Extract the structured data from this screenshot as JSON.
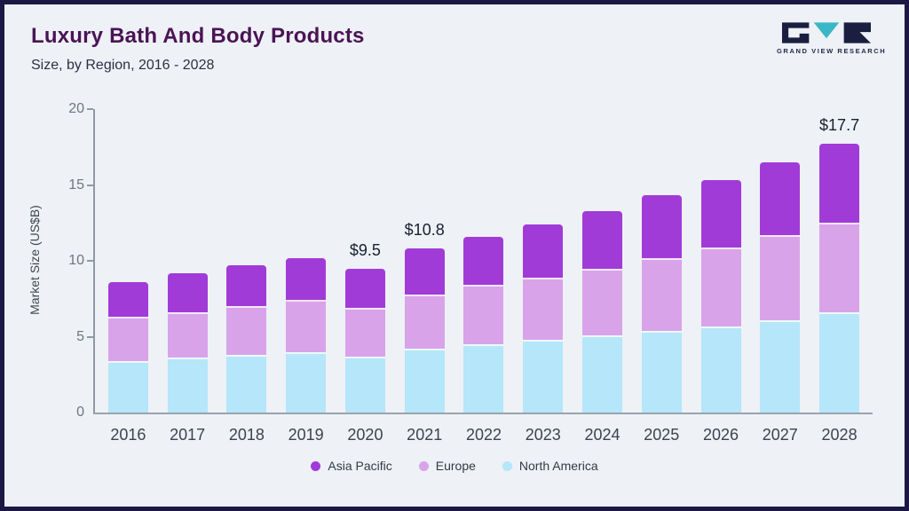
{
  "header": {
    "title": "Luxury Bath And Body Products",
    "subtitle": "Size, by Region, 2016 - 2028"
  },
  "logo": {
    "text": "GRAND VIEW RESEARCH",
    "teal": "#39b7c6",
    "navy": "#1a1e40"
  },
  "chart_data": {
    "type": "bar",
    "stacked": true,
    "title": "Luxury Bath And Body Products",
    "subtitle": "Size, by Region, 2016 - 2028",
    "ylabel": "Market Size (US$B)",
    "xlabel": "",
    "ylim": [
      0,
      20
    ],
    "yticks": [
      0,
      5,
      10,
      15,
      20
    ],
    "grid": false,
    "legend_position": "bottom",
    "categories": [
      "2016",
      "2017",
      "2018",
      "2019",
      "2020",
      "2021",
      "2022",
      "2023",
      "2024",
      "2025",
      "2026",
      "2027",
      "2028"
    ],
    "series": [
      {
        "name": "North America",
        "color": "#b5e6f9",
        "values": [
          3.4,
          3.6,
          3.8,
          4.0,
          3.7,
          4.2,
          4.5,
          4.8,
          5.1,
          5.4,
          5.7,
          6.1,
          6.6
        ]
      },
      {
        "name": "Europe",
        "color": "#d9a3ea",
        "values": [
          2.9,
          3.0,
          3.2,
          3.4,
          3.2,
          3.6,
          3.9,
          4.1,
          4.4,
          4.8,
          5.2,
          5.6,
          5.9
        ]
      },
      {
        "name": "Asia Pacific",
        "color": "#a13bd8",
        "values": [
          2.3,
          2.6,
          2.7,
          2.8,
          2.6,
          3.0,
          3.2,
          3.5,
          3.8,
          4.1,
          4.4,
          4.8,
          5.2
        ]
      }
    ],
    "annotations": [
      {
        "category": "2020",
        "label": "$9.5"
      },
      {
        "category": "2021",
        "label": "$10.8"
      },
      {
        "category": "2028",
        "label": "$17.7"
      }
    ],
    "legend_order": [
      "Asia Pacific",
      "Europe",
      "North America"
    ]
  }
}
